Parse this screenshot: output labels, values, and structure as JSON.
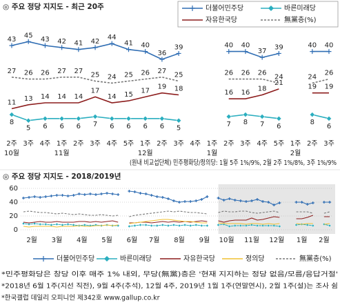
{
  "chart_data": [
    {
      "type": "line",
      "title": "◎ 주요 정당 지지도 - 최근 20주",
      "note": "(원내 비교섭단체) 민주평화당/정의당: 1월 5주 1%/9%, 2월 2주 1%/8%, 3주 1%/9%",
      "categories": [
        "2주",
        "3주",
        "4주",
        "1주",
        "2주",
        "3주",
        "4주",
        "5주",
        "1주",
        "2주",
        "3주",
        "4주",
        "1주",
        "2주",
        "3주",
        "4주",
        "5주",
        "1주",
        "2주",
        "3주"
      ],
      "months": [
        "10월",
        null,
        null,
        "11월",
        null,
        null,
        null,
        null,
        "12월",
        null,
        null,
        null,
        "1월",
        null,
        null,
        null,
        null,
        "2월",
        null,
        null
      ],
      "ylim": [
        0,
        50
      ],
      "data_labels": true,
      "legend": "top-right",
      "series": [
        {
          "name": "더불어민주당",
          "color": "#2f6db3",
          "marker": "plus",
          "values": [
            43,
            45,
            43,
            42,
            41,
            42,
            44,
            41,
            40,
            36,
            39,
            null,
            null,
            40,
            40,
            37,
            39,
            null,
            40,
            40
          ]
        },
        {
          "name": "바른미래당",
          "color": "#2aaebf",
          "marker": "diamond",
          "values": [
            8,
            5,
            6,
            6,
            6,
            7,
            6,
            6,
            6,
            6,
            5,
            null,
            null,
            7,
            8,
            7,
            6,
            null,
            8,
            6
          ]
        },
        {
          "name": "자유한국당",
          "color": "#8c1c1c",
          "values": [
            11,
            13,
            14,
            14,
            14,
            17,
            14,
            15,
            17,
            19,
            18,
            null,
            null,
            16,
            16,
            18,
            21,
            null,
            19,
            19
          ]
        },
        {
          "name": "無黨층(%)",
          "color": "#777777",
          "dashed": true,
          "values": [
            27,
            26,
            26,
            27,
            27,
            25,
            24,
            25,
            26,
            27,
            25,
            null,
            null,
            26,
            26,
            26,
            24,
            null,
            24,
            26
          ]
        }
      ]
    },
    {
      "type": "line",
      "title": "◎ 주요 정당 지지도 - 2018/2019년",
      "categories": [
        "2월",
        null,
        null,
        null,
        "3월",
        null,
        null,
        null,
        null,
        "4월",
        null,
        null,
        null,
        "5월",
        null,
        null,
        null,
        null,
        "6월",
        null,
        null,
        null,
        "7월",
        null,
        null,
        null,
        "8월",
        null,
        null,
        null,
        null,
        "9월",
        null,
        null,
        null,
        "10월",
        null,
        null,
        null,
        "11월",
        null,
        null,
        null,
        null,
        "12월",
        null,
        null,
        null,
        "1월",
        null,
        null,
        null,
        null,
        "2월",
        null,
        null
      ],
      "ylim": [
        0,
        60
      ],
      "yticks": [
        0,
        20,
        40,
        60
      ],
      "grid": true,
      "legend": "bottom",
      "series": [
        {
          "name": "더불어민주당",
          "color": "#2f6db3",
          "marker": "plus",
          "values": [
            46,
            47,
            48,
            47,
            48,
            49,
            50,
            50,
            49,
            50,
            52,
            51,
            52,
            51,
            52,
            53,
            52,
            51,
            null,
            56,
            55,
            53,
            52,
            50,
            48,
            47,
            45,
            42,
            40,
            41,
            41,
            42,
            44,
            48,
            null,
            46,
            43,
            45,
            43,
            42,
            41,
            42,
            44,
            41,
            40,
            36,
            39,
            null,
            null,
            40,
            40,
            37,
            39,
            null,
            40,
            40
          ]
        },
        {
          "name": "바른미래당",
          "color": "#2aaebf",
          "marker": "diamond",
          "values": [
            9,
            8,
            9,
            8,
            8,
            7,
            8,
            7,
            8,
            7,
            6,
            7,
            6,
            7,
            6,
            7,
            6,
            6,
            null,
            5,
            6,
            7,
            7,
            6,
            6,
            7,
            6,
            7,
            6,
            7,
            6,
            7,
            6,
            6,
            null,
            7,
            8,
            5,
            6,
            6,
            6,
            7,
            6,
            6,
            6,
            6,
            5,
            null,
            null,
            7,
            8,
            7,
            6,
            null,
            8,
            6
          ]
        },
        {
          "name": "자유한국당",
          "color": "#8c1c1c",
          "values": [
            11,
            10,
            11,
            12,
            11,
            11,
            12,
            11,
            11,
            11,
            12,
            12,
            11,
            12,
            11,
            12,
            13,
            11,
            null,
            10,
            10,
            11,
            11,
            10,
            11,
            12,
            11,
            12,
            11,
            12,
            11,
            12,
            13,
            12,
            null,
            13,
            11,
            13,
            14,
            14,
            14,
            17,
            14,
            15,
            17,
            19,
            18,
            null,
            null,
            16,
            16,
            18,
            21,
            null,
            19,
            19
          ]
        },
        {
          "name": "정의당",
          "color": "#f0c030",
          "values": [
            5,
            4,
            5,
            5,
            5,
            5,
            4,
            5,
            5,
            5,
            6,
            5,
            5,
            6,
            6,
            7,
            6,
            7,
            null,
            9,
            10,
            11,
            12,
            13,
            14,
            15,
            15,
            14,
            13,
            12,
            12,
            11,
            10,
            10,
            null,
            10,
            9,
            9,
            9,
            9,
            8,
            9,
            9,
            8,
            9,
            8,
            9,
            null,
            null,
            9,
            8,
            9,
            9,
            null,
            8,
            9
          ]
        },
        {
          "name": "無黨층(%)",
          "color": "#777777",
          "dashed": true,
          "values": [
            26,
            27,
            26,
            25,
            25,
            24,
            23,
            24,
            23,
            22,
            23,
            22,
            21,
            21,
            22,
            21,
            20,
            21,
            null,
            19,
            21,
            22,
            23,
            24,
            25,
            26,
            27,
            26,
            27,
            26,
            25,
            25,
            24,
            23,
            null,
            25,
            27,
            26,
            26,
            27,
            27,
            25,
            24,
            25,
            26,
            27,
            25,
            null,
            null,
            26,
            26,
            26,
            24,
            null,
            24,
            26
          ]
        }
      ]
    }
  ],
  "footnotes": [
    "*민주평화당은 창당 이후 매주 1% 내외, 무당(無黨)층은 '현재 지지하는 정당 없음/모름/응답거절'",
    "*2018년 6월 1주(지선 직전), 9월 4주(추석), 12월 4주, 2019년 1월 1주(연말연시), 2월 1주(설)는 조사 쉼",
    "*한국갤럽 데일리 오피니언 제342호 www.gallup.co.kr"
  ]
}
